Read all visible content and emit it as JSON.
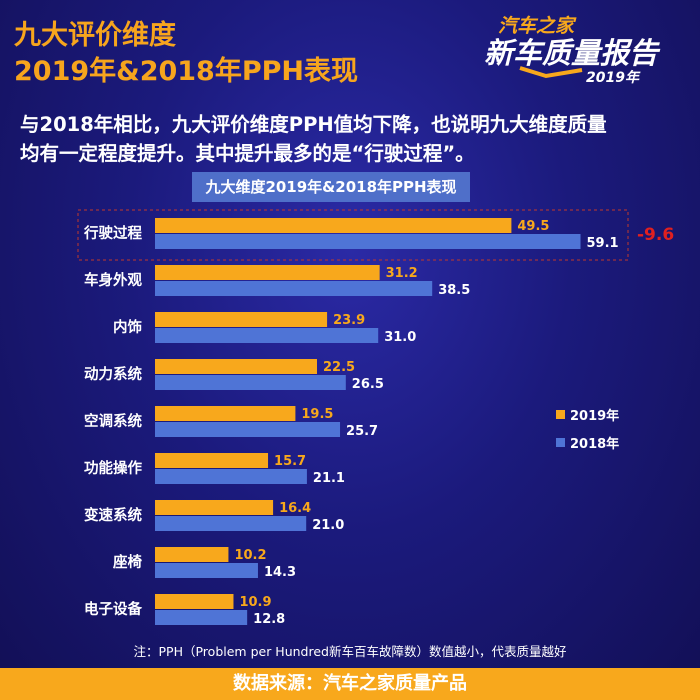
{
  "header": {
    "title_line1": "九大评价维度",
    "title_line2": "2019年&2018年PPH表现"
  },
  "logo": {
    "line1": "汽车之家",
    "line2": "新车质量报告",
    "year": "2019年"
  },
  "description": {
    "line1": "与2018年相比，九大评价维度PPH值均下降，也说明九大维度质量",
    "line2": "均有一定程度提升。其中提升最多的是“行驶过程”。"
  },
  "chart_data": {
    "type": "bar",
    "orientation": "horizontal",
    "title": "九大维度2019年&2018年PPH表现",
    "categories": [
      "行驶过程",
      "车身外观",
      "内饰",
      "动力系统",
      "空调系统",
      "功能操作",
      "变速系统",
      "座椅",
      "电子设备"
    ],
    "series": [
      {
        "name": "2019年",
        "color": "#f8a81c",
        "values": [
          49.5,
          31.2,
          23.9,
          22.5,
          19.5,
          15.7,
          16.4,
          10.2,
          10.9
        ],
        "labels": [
          "49.5",
          "31.2",
          "23.9",
          "22.5",
          "19.5",
          "15.7",
          "16.4",
          "10.2",
          "10.9"
        ]
      },
      {
        "name": "2018年",
        "color": "#4f74d6",
        "values": [
          59.1,
          38.5,
          31.0,
          26.5,
          25.7,
          21.1,
          21.0,
          14.3,
          12.8
        ],
        "labels": [
          "59.1",
          "38.5",
          "31.0",
          "26.5",
          "25.7",
          "21.1",
          "21.0",
          "14.3",
          "12.8"
        ]
      }
    ],
    "xlim": [
      0,
      65
    ],
    "legend_position": "right",
    "annotation": {
      "category": "行驶过程",
      "text": "-9.6",
      "color": "#e02020"
    },
    "grid": false
  },
  "note": "注：PPH（Problem per Hundred新车百车故障数）数值越小，代表质量越好",
  "footer": "数据来源：汽车之家质量产品"
}
